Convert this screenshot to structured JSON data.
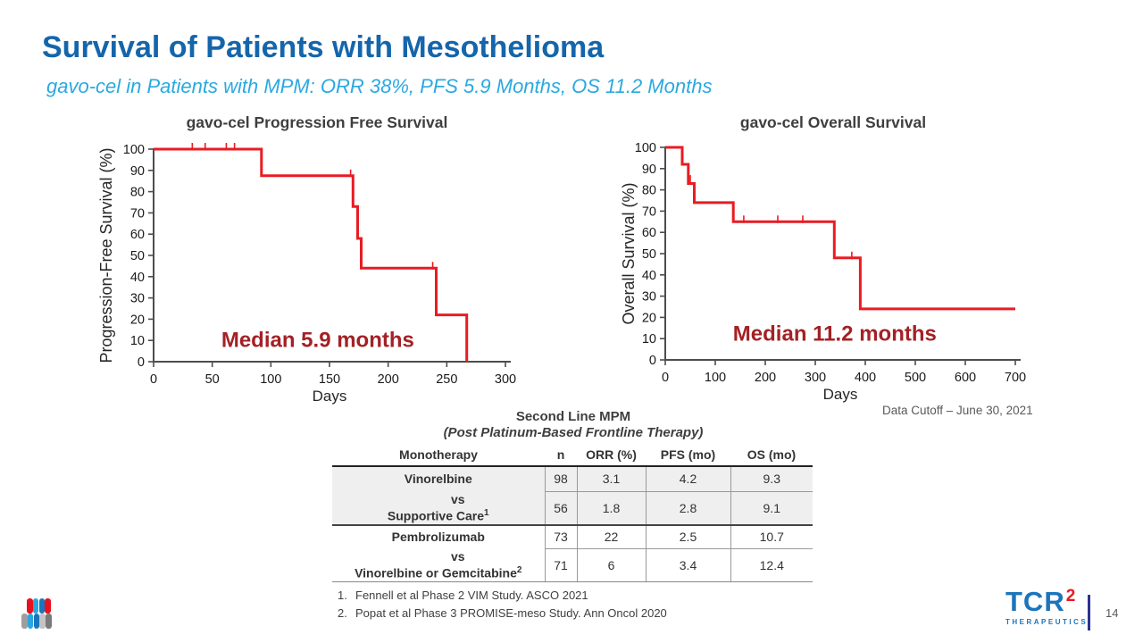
{
  "slide": {
    "title": "Survival of Patients with Mesothelioma",
    "subtitle": "gavo-cel in Patients with MPM: ORR 38%, PFS 5.9 Months, OS 11.2 Months",
    "data_cutoff": "Data Cutoff – June 30, 2021",
    "page_number": "14"
  },
  "colors": {
    "title_blue": "#1565ab",
    "subtitle_blue": "#2aa9e0",
    "curve_red": "#e91c23",
    "median_red": "#a32126",
    "chart_title_gray": "#3f3f3f",
    "axis_gray": "#4d4d4d",
    "logo_blue": "#1b75bc",
    "logo_red": "#e8191f"
  },
  "chart_data": [
    {
      "id": "pfs",
      "type": "line",
      "subtype": "kaplan-meier-step",
      "title": "gavo-cel Progression Free Survival",
      "xlabel": "Days",
      "ylabel": "Progression-Free Survival (%)",
      "xlim": [
        0,
        300
      ],
      "ylim": [
        0,
        100
      ],
      "xticks": [
        0,
        50,
        100,
        150,
        200,
        250,
        300
      ],
      "yticks": [
        0,
        10,
        20,
        30,
        40,
        50,
        60,
        70,
        80,
        90,
        100
      ],
      "grid": false,
      "legend": "none",
      "steps": [
        [
          0,
          100
        ],
        [
          92,
          100
        ],
        [
          92,
          87.5
        ],
        [
          170,
          87.5
        ],
        [
          170,
          73
        ],
        [
          174,
          73
        ],
        [
          174,
          58
        ],
        [
          177,
          58
        ],
        [
          177,
          44
        ],
        [
          241,
          44
        ],
        [
          241,
          22
        ],
        [
          267,
          22
        ],
        [
          267,
          0
        ]
      ],
      "censor_marks": [
        [
          33,
          100
        ],
        [
          44,
          100
        ],
        [
          62,
          100
        ],
        [
          69,
          100
        ],
        [
          168,
          87.5
        ],
        [
          238,
          44
        ]
      ],
      "annotation": "Median 5.9 months"
    },
    {
      "id": "os",
      "type": "line",
      "subtype": "kaplan-meier-step",
      "title": "gavo-cel Overall Survival",
      "xlabel": "Days",
      "ylabel": "Overall Survival (%)",
      "xlim": [
        0,
        700
      ],
      "ylim": [
        0,
        100
      ],
      "xticks": [
        0,
        100,
        200,
        300,
        400,
        500,
        600,
        700
      ],
      "yticks": [
        0,
        10,
        20,
        30,
        40,
        50,
        60,
        70,
        80,
        90,
        100
      ],
      "grid": false,
      "legend": "none",
      "steps": [
        [
          0,
          100
        ],
        [
          34,
          100
        ],
        [
          34,
          92
        ],
        [
          46,
          92
        ],
        [
          46,
          83
        ],
        [
          58,
          83
        ],
        [
          58,
          74
        ],
        [
          136,
          74
        ],
        [
          136,
          65
        ],
        [
          338,
          65
        ],
        [
          338,
          48
        ],
        [
          390,
          48
        ],
        [
          390,
          24
        ],
        [
          700,
          24
        ]
      ],
      "censor_marks": [
        [
          50,
          84
        ],
        [
          157,
          65
        ],
        [
          225,
          65
        ],
        [
          275,
          65
        ],
        [
          373,
          48
        ]
      ],
      "annotation": "Median 11.2 months"
    }
  ],
  "table": {
    "title": "Second Line MPM",
    "subtitle": "(Post Platinum-Based Frontline Therapy)",
    "columns": [
      "Monotherapy",
      "n",
      "ORR (%)",
      "PFS (mo)",
      "OS (mo)"
    ],
    "groups": [
      {
        "line1": "Vinorelbine",
        "line2": "vs",
        "line3": "Supportive Care",
        "line3_sup": "1",
        "rows": [
          [
            "98",
            "3.1",
            "4.2",
            "9.3"
          ],
          [
            "56",
            "1.8",
            "2.8",
            "9.1"
          ]
        ]
      },
      {
        "line1": "Pembrolizumab",
        "line2": "vs",
        "line3": "Vinorelbine or Gemcitabine",
        "line3_sup": "2",
        "rows": [
          [
            "73",
            "22",
            "2.5",
            "10.7"
          ],
          [
            "71",
            "6",
            "3.4",
            "12.4"
          ]
        ]
      }
    ],
    "footnotes": [
      {
        "num": "1.",
        "text": "Fennell et al Phase 2 VIM Study. ASCO 2021"
      },
      {
        "num": "2.",
        "text": "Popat et al Phase 3 PROMISE-meso Study. Ann Oncol 2020"
      }
    ]
  },
  "branding": {
    "logo_text": "TCR",
    "logo_sup": "2",
    "logo_sub": "THERAPEUTICS",
    "pills_top": [
      "#e8111f",
      "#29a8e0",
      "#1b75bc",
      "#e8111f"
    ],
    "pills_bottom": [
      "#9e9e9e",
      "#29a8e0",
      "#1b75bc",
      "#c4c4c4",
      "#7a7a7a"
    ]
  }
}
